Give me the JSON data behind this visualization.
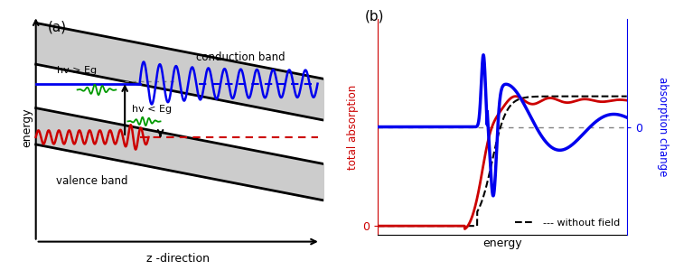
{
  "fig_width": 7.46,
  "fig_height": 2.99,
  "dpi": 100,
  "bg_color": "#ffffff",
  "panel_a_label": "(a)",
  "panel_b_label": "(b)",
  "band_fill_color": "#cccccc",
  "conduction_band_label": "conduction band",
  "valence_band_label": "valence band",
  "z_direction_label": "z -direction",
  "energy_label": "energy",
  "hv_gt_label": "hv > Eg",
  "hv_lt_label": "hv < Eg",
  "total_absorption_label": "total absorption",
  "absorption_change_label": "absorption change",
  "energy_xlabel": "energy",
  "without_field_label": "without field",
  "blue_color": "#0000ee",
  "red_color": "#cc0000",
  "green_color": "#009900",
  "black_color": "#000000"
}
